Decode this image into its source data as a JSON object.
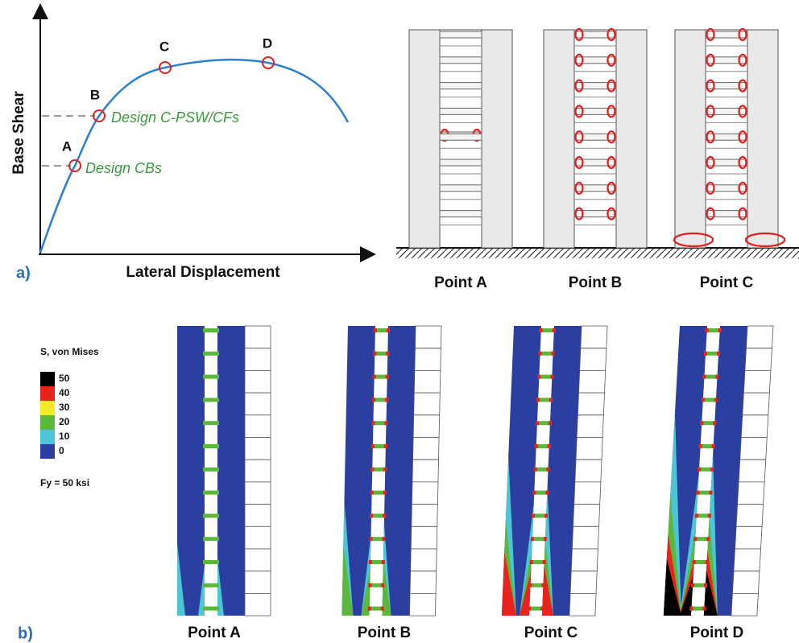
{
  "panel_a": {
    "label": "a)",
    "y_axis_label": "Base Shear",
    "x_axis_label": "Lateral Displacement",
    "points": [
      "A",
      "B",
      "C",
      "D"
    ],
    "annotations": [
      "Design C-PSW/CFs",
      "Design CBs"
    ],
    "wall_labels": [
      "Point A",
      "Point B",
      "Point C"
    ]
  },
  "panel_b": {
    "label": "b)",
    "legend_title": "S, von Mises",
    "legend": [
      {
        "value": 50,
        "color": "#000000"
      },
      {
        "value": 40,
        "color": "#e8231e"
      },
      {
        "value": 30,
        "color": "#f3ea2a"
      },
      {
        "value": 20,
        "color": "#5cb83c"
      },
      {
        "value": 10,
        "color": "#4cc6d6"
      },
      {
        "value": 0,
        "color": "#2a3fa0"
      }
    ],
    "footnote": "Fy = 50 ksi",
    "wall_labels": [
      "Point A",
      "Point B",
      "Point C",
      "Point D"
    ]
  }
}
